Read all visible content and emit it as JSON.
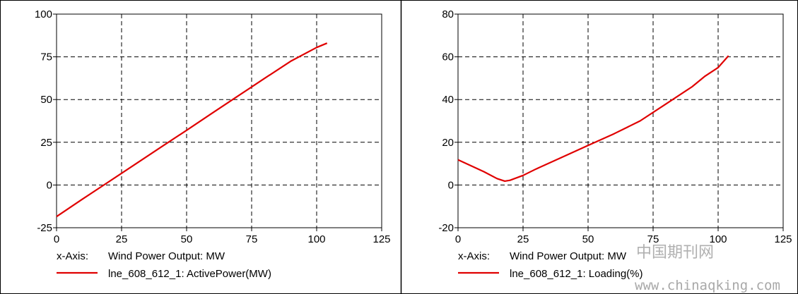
{
  "chart_data": [
    {
      "type": "line",
      "xlim": [
        0,
        125
      ],
      "ylim": [
        -25,
        100
      ],
      "x_ticks": [
        "0",
        "25",
        "50",
        "75",
        "100",
        "125"
      ],
      "y_ticks": [
        "-25",
        "0",
        "25",
        "50",
        "75",
        "100"
      ],
      "grid": true,
      "legend": {
        "axis_prefix": "x-Axis:",
        "axis_text": "Wind Power Output: MW",
        "series_text": "lne_608_612_1: ActivePower(MW)"
      },
      "series": [
        {
          "name": "lne_608_612_1: ActivePower(MW)",
          "color": "#e00000",
          "x": [
            0,
            10,
            20,
            30,
            40,
            50,
            60,
            70,
            80,
            90,
            100,
            104
          ],
          "y": [
            -18.5,
            -8.2,
            1.8,
            11.9,
            22.0,
            32.0,
            42.2,
            52.3,
            62.4,
            72.4,
            80.5,
            83.0
          ]
        }
      ]
    },
    {
      "type": "line",
      "xlim": [
        0,
        125
      ],
      "ylim": [
        -20,
        80
      ],
      "x_ticks": [
        "0",
        "25",
        "50",
        "75",
        "100",
        "125"
      ],
      "y_ticks": [
        "-20",
        "0",
        "20",
        "40",
        "60",
        "80"
      ],
      "grid": true,
      "legend": {
        "axis_prefix": "x-Axis:",
        "axis_text": "Wind Power Output: MW",
        "series_text": "lne_608_612_1: Loading(%)"
      },
      "series": [
        {
          "name": "lne_608_612_1: Loading(%)",
          "color": "#e00000",
          "x": [
            0,
            5,
            10,
            15,
            18,
            20,
            25,
            30,
            40,
            50,
            60,
            70,
            80,
            90,
            95,
            100,
            104
          ],
          "y": [
            11.8,
            9.0,
            6.2,
            3.0,
            1.8,
            2.2,
            4.5,
            7.5,
            13.0,
            18.5,
            24.0,
            30.0,
            38.0,
            46.0,
            51.0,
            55.0,
            60.5
          ]
        }
      ]
    }
  ],
  "watermark": {
    "cn": "中国期刊网",
    "url": "www.chinaqking.com"
  }
}
